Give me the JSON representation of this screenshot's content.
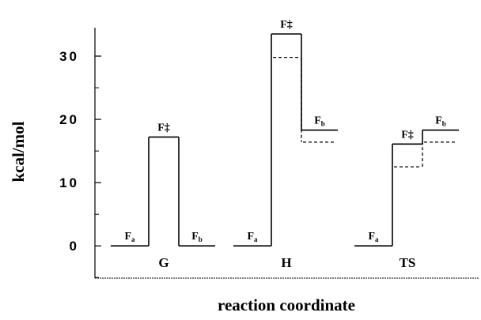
{
  "chart_data": {
    "type": "energy-profile",
    "ylabel": "kcal/mol",
    "xlabel": "reaction coordinate",
    "ylim": [
      -5.1,
      34.5
    ],
    "yticks": [
      0,
      10,
      20,
      30
    ],
    "yminorticks": [
      -5,
      5,
      15,
      25
    ],
    "level_labels": [
      {
        "text": "F",
        "sub": "a"
      },
      {
        "text": "F‡"
      },
      {
        "text": "F",
        "sub": "b"
      }
    ],
    "groups": [
      {
        "name": "G",
        "values": [
          0,
          17.2,
          0
        ],
        "dashed_values": [
          null,
          null,
          null
        ]
      },
      {
        "name": "H",
        "values": [
          0,
          33.5,
          18.3
        ],
        "dashed_values": [
          null,
          29.8,
          16.4
        ]
      },
      {
        "name": "TS",
        "values": [
          0,
          16.1,
          18.3
        ],
        "dashed_values": [
          null,
          12.5,
          16.4
        ]
      }
    ]
  }
}
